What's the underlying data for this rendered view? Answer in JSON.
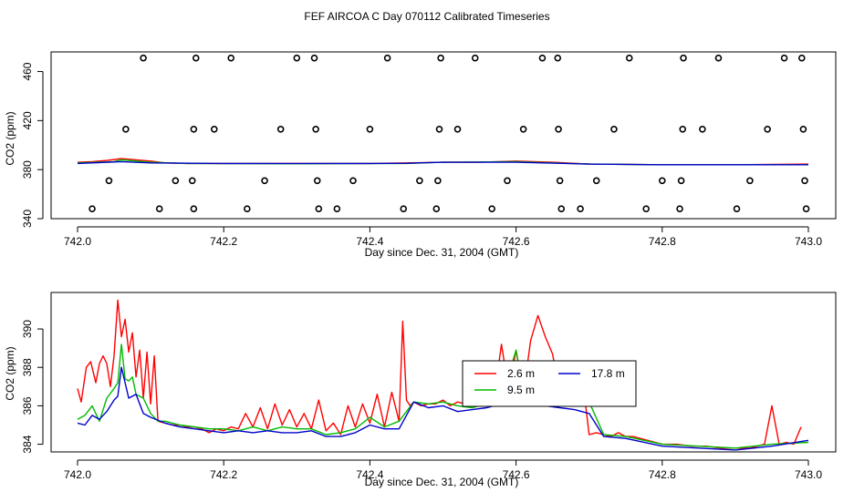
{
  "figure_title": "FEF AIRCOA C  Day 070112  Calibrated Timeseries",
  "chart_data": [
    {
      "type": "scatter+line",
      "title": "",
      "xlabel": "Day since Dec. 31, 2004 (GMT)",
      "ylabel": "CO2 (ppm)",
      "xlim": [
        742.0,
        743.0
      ],
      "ylim": [
        340,
        476
      ],
      "xticks": [
        "742.0",
        "742.2",
        "742.4",
        "742.6",
        "742.8",
        "743.0"
      ],
      "yticks": [
        "340",
        "380",
        "420",
        "460"
      ],
      "series": [
        {
          "name": "calibration-points",
          "kind": "points",
          "color": "#000000",
          "points": [
            [
              742.09,
              471
            ],
            [
              742.162,
              471
            ],
            [
              742.21,
              471
            ],
            [
              742.3,
              471
            ],
            [
              742.324,
              471
            ],
            [
              742.424,
              471
            ],
            [
              742.497,
              471
            ],
            [
              742.544,
              471
            ],
            [
              742.636,
              471
            ],
            [
              742.657,
              471
            ],
            [
              742.755,
              471
            ],
            [
              742.829,
              471
            ],
            [
              742.877,
              471
            ],
            [
              742.967,
              471
            ],
            [
              742.991,
              471
            ],
            [
              742.066,
              413
            ],
            [
              742.159,
              413
            ],
            [
              742.187,
              413
            ],
            [
              742.278,
              413
            ],
            [
              742.326,
              413
            ],
            [
              742.4,
              413
            ],
            [
              742.495,
              413
            ],
            [
              742.52,
              413
            ],
            [
              742.61,
              413
            ],
            [
              742.658,
              413
            ],
            [
              742.734,
              413
            ],
            [
              742.828,
              413
            ],
            [
              742.855,
              413
            ],
            [
              742.944,
              413
            ],
            [
              742.993,
              413
            ],
            [
              742.043,
              371
            ],
            [
              742.134,
              371
            ],
            [
              742.157,
              371
            ],
            [
              742.256,
              371
            ],
            [
              742.328,
              371
            ],
            [
              742.377,
              371
            ],
            [
              742.468,
              371
            ],
            [
              742.493,
              371
            ],
            [
              742.588,
              371
            ],
            [
              742.66,
              371
            ],
            [
              742.71,
              371
            ],
            [
              742.8,
              371
            ],
            [
              742.826,
              371
            ],
            [
              742.92,
              371
            ],
            [
              742.995,
              371
            ],
            [
              742.02,
              348
            ],
            [
              742.112,
              348
            ],
            [
              742.159,
              348
            ],
            [
              742.232,
              348
            ],
            [
              742.33,
              348
            ],
            [
              742.355,
              348
            ],
            [
              742.446,
              348
            ],
            [
              742.491,
              348
            ],
            [
              742.567,
              348
            ],
            [
              742.662,
              348
            ],
            [
              742.688,
              348
            ],
            [
              742.778,
              348
            ],
            [
              742.824,
              348
            ],
            [
              742.902,
              348
            ],
            [
              742.997,
              348
            ]
          ]
        },
        {
          "name": "2.6 m",
          "kind": "line",
          "color": "#ff0000",
          "x": [
            742.0,
            742.02,
            742.04,
            742.06,
            742.08,
            742.1,
            742.12,
            742.15,
            742.2,
            742.3,
            742.4,
            742.45,
            742.5,
            742.55,
            742.6,
            742.65,
            742.7,
            742.8,
            742.9,
            743.0
          ],
          "y": [
            386,
            386.5,
            387.5,
            389,
            388,
            387,
            385.5,
            385,
            385,
            385,
            385,
            385.5,
            386,
            386,
            387,
            386,
            384.5,
            384,
            384,
            384.5
          ]
        },
        {
          "name": "9.5 m",
          "kind": "line",
          "color": "#00bb00",
          "x": [
            742.0,
            742.05,
            742.06,
            742.1,
            742.15,
            742.3,
            742.45,
            742.5,
            742.6,
            742.7,
            742.8,
            743.0
          ],
          "y": [
            385.5,
            386.5,
            388,
            386,
            385,
            384.8,
            385,
            386,
            386.5,
            384.5,
            384,
            384
          ]
        },
        {
          "name": "17.8 m",
          "kind": "line",
          "color": "#0000cc",
          "x": [
            742.0,
            742.06,
            742.1,
            742.2,
            742.4,
            742.45,
            742.5,
            742.6,
            742.7,
            742.8,
            743.0
          ],
          "y": [
            385,
            386.5,
            385.5,
            385,
            385,
            385.2,
            386,
            386,
            384.5,
            384,
            384
          ]
        }
      ]
    },
    {
      "type": "line",
      "title": "",
      "xlabel": "Day since Dec. 31, 2004 (GMT)",
      "ylabel": "CO2 (ppm)",
      "xlim": [
        742.0,
        743.0
      ],
      "ylim": [
        383.6,
        391.9
      ],
      "xticks": [
        "742.0",
        "742.2",
        "742.4",
        "742.6",
        "742.8",
        "743.0"
      ],
      "yticks": [
        "384",
        "386",
        "388",
        "390"
      ],
      "legend": {
        "placement": "center-right",
        "entries": [
          "2.6 m",
          "17.8 m",
          "9.5 m"
        ]
      },
      "series": [
        {
          "name": "2.6 m",
          "color": "#ff0000",
          "x": [
            742.0,
            742.005,
            742.012,
            742.018,
            742.025,
            742.03,
            742.035,
            742.04,
            742.045,
            742.05,
            742.055,
            742.06,
            742.065,
            742.07,
            742.075,
            742.08,
            742.085,
            742.09,
            742.095,
            742.1,
            742.105,
            742.11,
            742.12,
            742.13,
            742.14,
            742.15,
            742.16,
            742.17,
            742.18,
            742.19,
            742.2,
            742.21,
            742.22,
            742.23,
            742.24,
            742.25,
            742.26,
            742.27,
            742.28,
            742.29,
            742.3,
            742.31,
            742.32,
            742.33,
            742.34,
            742.35,
            742.36,
            742.37,
            742.38,
            742.39,
            742.4,
            742.41,
            742.42,
            742.43,
            742.44,
            742.445,
            742.45,
            742.455,
            742.46,
            742.47,
            742.48,
            742.49,
            742.5,
            742.51,
            742.52,
            742.53,
            742.54,
            742.55,
            742.56,
            742.57,
            742.58,
            742.59,
            742.6,
            742.61,
            742.62,
            742.63,
            742.64,
            742.65,
            742.66,
            742.67,
            742.68,
            742.69,
            742.695,
            742.7,
            742.71,
            742.72,
            742.73,
            742.74,
            742.75,
            742.76,
            742.77,
            742.78,
            742.8,
            742.82,
            742.84,
            742.86,
            742.88,
            742.9,
            742.92,
            742.93,
            742.94,
            742.95,
            742.96,
            742.97,
            742.98,
            742.99
          ],
          "y": [
            386.9,
            386.2,
            388,
            388.3,
            387.2,
            388.2,
            388.6,
            388.2,
            387,
            388.6,
            391.5,
            389.6,
            390.5,
            388.8,
            389.8,
            387.5,
            388.9,
            386.4,
            388.8,
            386.1,
            388.6,
            385.2,
            385.1,
            385.0,
            385.0,
            384.9,
            384.9,
            384.8,
            384.6,
            384.8,
            384.7,
            384.9,
            384.8,
            385.6,
            384.9,
            385.9,
            384.8,
            386.1,
            385.0,
            385.8,
            384.9,
            385.6,
            384.8,
            386.3,
            384.7,
            385.1,
            384.5,
            386.0,
            384.9,
            386.1,
            385.1,
            386.6,
            384.9,
            386.7,
            385.2,
            390.4,
            386.3,
            386.0,
            386.2,
            386.0,
            386.1,
            386.1,
            386.3,
            386.0,
            386.2,
            386.1,
            386.0,
            386.3,
            386.2,
            386.4,
            389.2,
            386.8,
            388.9,
            386.6,
            389.4,
            390.7,
            389.6,
            388.7,
            386.6,
            386.5,
            386.5,
            386.6,
            386.1,
            384.5,
            384.6,
            384.5,
            384.4,
            384.6,
            384.4,
            384.4,
            384.3,
            384.2,
            384.0,
            384.0,
            383.9,
            383.9,
            383.8,
            383.8,
            383.8,
            383.9,
            384.0,
            386.0,
            384.0,
            384.1,
            384.0,
            384.9
          ]
        },
        {
          "name": "9.5 m",
          "color": "#00bb00",
          "x": [
            742.0,
            742.01,
            742.02,
            742.03,
            742.04,
            742.05,
            742.055,
            742.06,
            742.065,
            742.07,
            742.075,
            742.08,
            742.09,
            742.1,
            742.11,
            742.12,
            742.14,
            742.16,
            742.18,
            742.2,
            742.22,
            742.24,
            742.26,
            742.28,
            742.3,
            742.32,
            742.34,
            742.36,
            742.38,
            742.4,
            742.42,
            742.44,
            742.46,
            742.48,
            742.5,
            742.52,
            742.54,
            742.56,
            742.58,
            742.6,
            742.61,
            742.62,
            742.64,
            742.66,
            742.68,
            742.7,
            742.72,
            742.75,
            742.8,
            742.85,
            742.9,
            742.95,
            743.0
          ],
          "y": [
            385.3,
            385.5,
            386,
            385.2,
            386.4,
            386.9,
            387.2,
            389.2,
            387.4,
            387.3,
            387.5,
            386.6,
            386.4,
            385.6,
            385.2,
            385.2,
            385.0,
            384.9,
            384.8,
            384.8,
            384.7,
            384.9,
            384.7,
            384.9,
            384.8,
            384.8,
            384.5,
            384.6,
            384.8,
            385.4,
            384.9,
            385.2,
            386.2,
            386.1,
            386.2,
            386.0,
            385.9,
            386.1,
            386.4,
            388.9,
            386.8,
            386.8,
            386.3,
            386.2,
            386.1,
            386.2,
            384.5,
            384.4,
            384.0,
            383.9,
            383.8,
            384.0,
            384.1
          ]
        },
        {
          "name": "17.8 m",
          "color": "#0000cc",
          "x": [
            742.0,
            742.01,
            742.02,
            742.03,
            742.04,
            742.05,
            742.055,
            742.06,
            742.065,
            742.07,
            742.08,
            742.09,
            742.1,
            742.12,
            742.14,
            742.16,
            742.18,
            742.2,
            742.22,
            742.24,
            742.26,
            742.28,
            742.3,
            742.32,
            742.34,
            742.36,
            742.38,
            742.4,
            742.42,
            742.44,
            742.46,
            742.48,
            742.5,
            742.52,
            742.54,
            742.56,
            742.58,
            742.6,
            742.62,
            742.64,
            742.66,
            742.68,
            742.7,
            742.72,
            742.75,
            742.8,
            742.85,
            742.9,
            742.95,
            743.0
          ],
          "y": [
            385.1,
            385.0,
            385.5,
            385.3,
            385.7,
            386.3,
            386.5,
            388.0,
            387.2,
            386.4,
            386.6,
            385.6,
            385.4,
            385.1,
            384.9,
            384.8,
            384.7,
            384.6,
            384.7,
            384.6,
            384.7,
            384.6,
            384.6,
            384.7,
            384.4,
            384.4,
            384.6,
            385.0,
            384.8,
            384.8,
            386.2,
            385.9,
            386.0,
            385.7,
            385.8,
            385.9,
            386.1,
            386.5,
            386.3,
            386.0,
            385.9,
            385.8,
            385.6,
            384.4,
            384.3,
            383.9,
            383.8,
            383.7,
            383.9,
            384.2
          ]
        }
      ]
    }
  ]
}
